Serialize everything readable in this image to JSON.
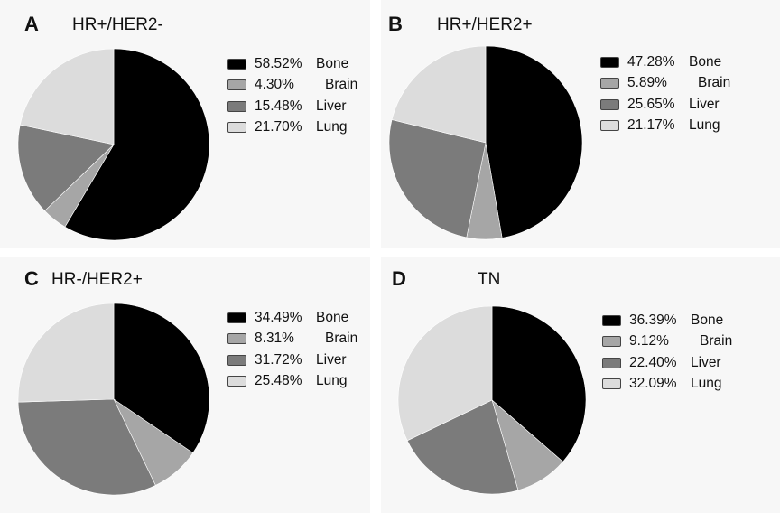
{
  "colors": {
    "Bone": "#000000",
    "Brain": "#a6a6a6",
    "Liver": "#7b7b7b",
    "Lung": "#dcdcdc"
  },
  "chart_data": [
    {
      "type": "pie",
      "panel_label": "A",
      "title": "HR+/HER2-",
      "categories": [
        "Bone",
        "Brain",
        "Liver",
        "Lung"
      ],
      "values": [
        58.52,
        4.3,
        15.48,
        21.7
      ],
      "value_labels": [
        "58.52%",
        "4.30%",
        "15.48%",
        "21.70%"
      ],
      "legend_position": "right"
    },
    {
      "type": "pie",
      "panel_label": "B",
      "title": "HR+/HER2+",
      "categories": [
        "Bone",
        "Brain",
        "Liver",
        "Lung"
      ],
      "values": [
        47.28,
        5.89,
        25.65,
        21.17
      ],
      "value_labels": [
        "47.28%",
        "5.89%",
        "25.65%",
        "21.17%"
      ],
      "legend_position": "right"
    },
    {
      "type": "pie",
      "panel_label": "C",
      "title": "HR-/HER2+",
      "categories": [
        "Bone",
        "Brain",
        "Liver",
        "Lung"
      ],
      "values": [
        34.49,
        8.31,
        31.72,
        25.48
      ],
      "value_labels": [
        "34.49%",
        "8.31%",
        "31.72%",
        "25.48%"
      ],
      "legend_position": "right"
    },
    {
      "type": "pie",
      "panel_label": "D",
      "title": "TN",
      "categories": [
        "Bone",
        "Brain",
        "Liver",
        "Lung"
      ],
      "values": [
        36.39,
        9.12,
        22.4,
        32.09
      ],
      "value_labels": [
        "36.39%",
        "9.12%",
        "22.40%",
        "32.09%"
      ],
      "legend_position": "right"
    }
  ]
}
